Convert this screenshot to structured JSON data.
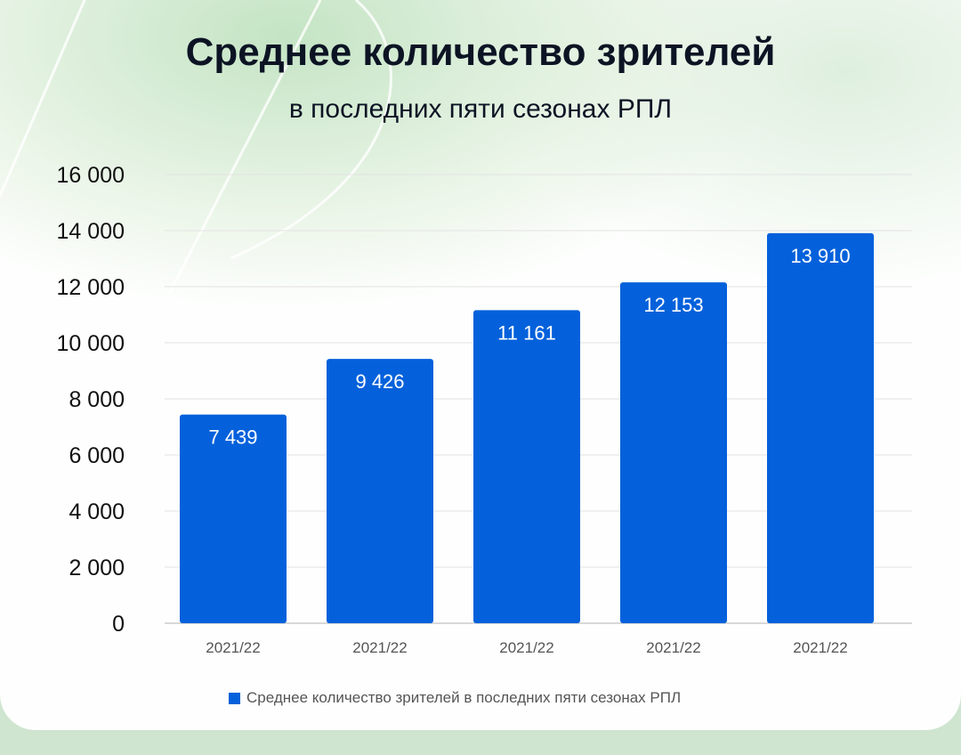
{
  "chart_data": {
    "type": "bar",
    "title": "Среднее количество зрителей",
    "subtitle": "в последних пяти сезонах РПЛ",
    "categories": [
      "2021/22",
      "2021/22",
      "2021/22",
      "2021/22",
      "2021/22"
    ],
    "series": [
      {
        "name": "Среднее количество зрителей в последних пяти сезонах РПЛ",
        "values": [
          7439,
          9426,
          11161,
          12153,
          13910
        ]
      }
    ],
    "data_labels": [
      "7 439",
      "9 426",
      "11 161",
      "12 153",
      "13 910"
    ],
    "yticks": [
      0,
      2000,
      4000,
      6000,
      8000,
      10000,
      12000,
      14000,
      16000
    ],
    "ytick_labels": [
      "0",
      "2 000",
      "4 000",
      "6 000",
      "8 000",
      "10 000",
      "12 000",
      "14 000",
      "16 000"
    ],
    "ylim": [
      0,
      16000
    ],
    "grid": true,
    "legend": "bottom",
    "bar_color": "#0461db"
  }
}
